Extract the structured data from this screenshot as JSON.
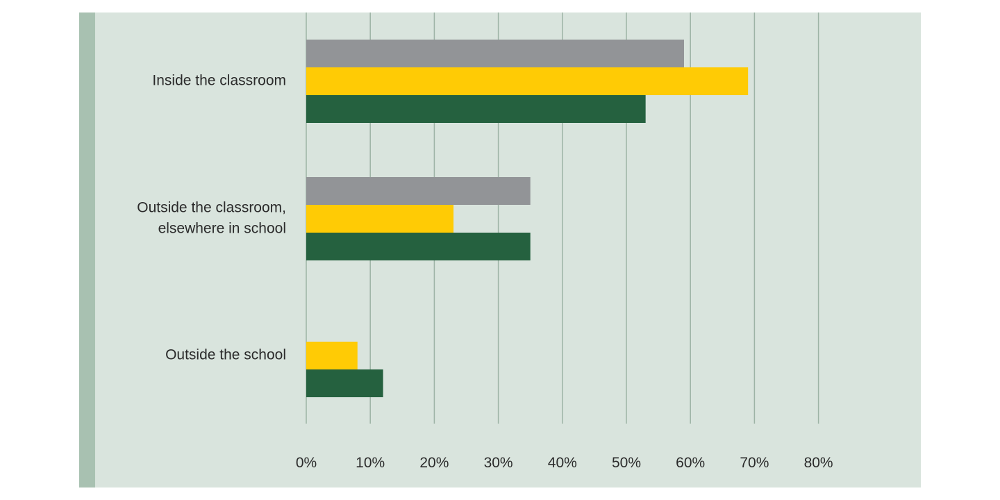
{
  "chart_data": {
    "type": "bar",
    "orientation": "horizontal",
    "categories": [
      [
        "Inside the classroom"
      ],
      [
        "Outside the classroom,",
        "elsewhere in school"
      ],
      [
        "Outside the school"
      ]
    ],
    "series": [
      {
        "color": "#929497",
        "values": [
          59,
          35,
          null
        ]
      },
      {
        "color": "#FFCB05",
        "values": [
          69,
          23,
          8
        ]
      },
      {
        "color": "#25613F",
        "values": [
          53,
          35,
          12
        ]
      }
    ],
    "x_ticks": [
      "0%",
      "10%",
      "20%",
      "30%",
      "40%",
      "50%",
      "60%",
      "70%",
      "80%"
    ],
    "xlim": [
      0,
      80
    ],
    "grid": true,
    "legend": "none",
    "colors": {
      "panel_background": "#D9E4DD",
      "left_accent": "#A8C1B1",
      "gridline": "#9DB3A5"
    }
  }
}
